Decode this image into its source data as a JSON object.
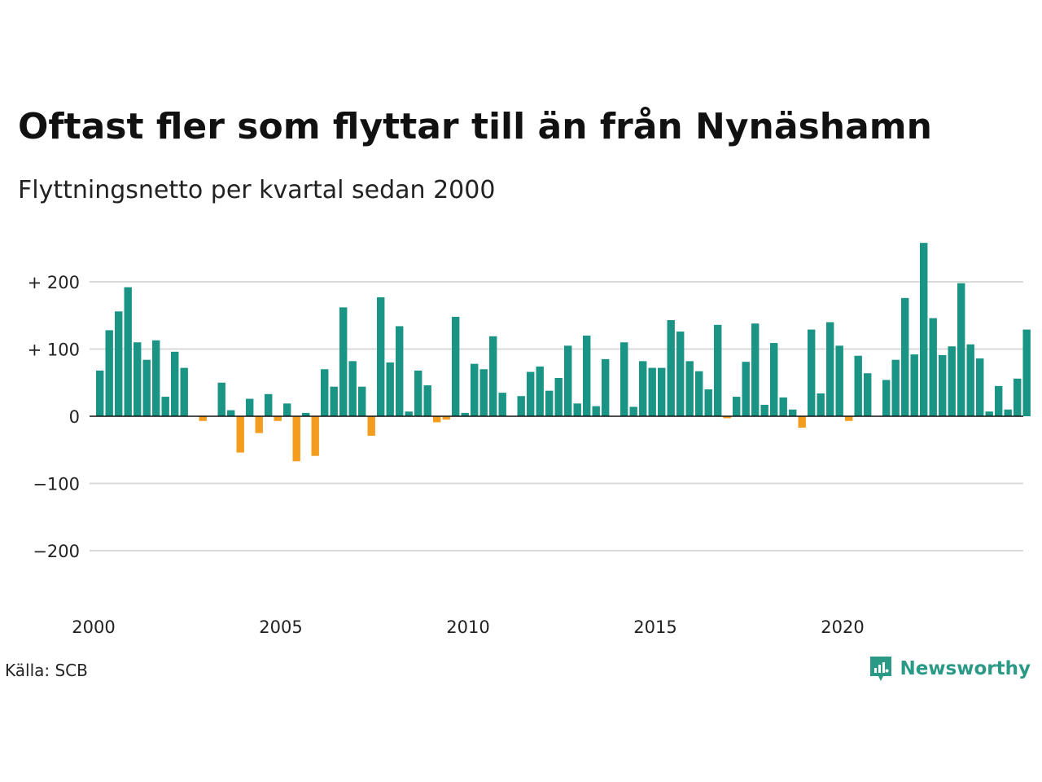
{
  "header": {
    "title": "Oftast fler som flyttar till än från Nynäshamn",
    "subtitle": "Flyttningsnetto per kvartal sedan 2000"
  },
  "footer": {
    "source": "Källa: SCB",
    "brand": "Newsworthy",
    "brand_icon": "chart-bubble-icon"
  },
  "colors": {
    "positive": "#1a9485",
    "negative": "#f39c1e",
    "grid": "#d9d9d9",
    "axis": "#111111",
    "brand": "#2a9a86"
  },
  "chart_data": {
    "type": "bar",
    "title": "Oftast fler som flyttar till än från Nynäshamn",
    "subtitle": "Flyttningsnetto per kvartal sedan 2000",
    "xlabel": "",
    "ylabel": "",
    "ylim": [
      -200,
      260
    ],
    "yticks": [
      200,
      100,
      0,
      -100,
      -200
    ],
    "ytick_labels": [
      "+ 200",
      "+ 100",
      "0",
      "−100",
      "−200"
    ],
    "xticks": [
      2000,
      2005,
      2010,
      2015,
      2020
    ],
    "xtick_labels": [
      "2000",
      "2005",
      "2010",
      "2015",
      "2020"
    ],
    "x_start": 2000,
    "grid": true,
    "values": [
      68,
      128,
      156,
      192,
      110,
      84,
      113,
      29,
      96,
      72,
      0,
      -7,
      0,
      50,
      9,
      -54,
      26,
      -25,
      33,
      -7,
      19,
      -67,
      5,
      -59,
      70,
      44,
      162,
      82,
      44,
      -29,
      177,
      80,
      134,
      7,
      68,
      46,
      -9,
      -5,
      148,
      5,
      78,
      70,
      119,
      35,
      0,
      30,
      66,
      74,
      38,
      57,
      105,
      19,
      120,
      15,
      85,
      0,
      110,
      14,
      82,
      72,
      72,
      143,
      126,
      82,
      67,
      40,
      136,
      -3,
      29,
      81,
      138,
      17,
      109,
      28,
      10,
      -17,
      129,
      34,
      140,
      105,
      -7,
      90,
      64,
      0,
      54,
      84,
      176,
      92,
      258,
      146,
      91,
      104,
      198,
      107,
      86,
      7,
      45,
      10,
      56,
      129
    ]
  }
}
